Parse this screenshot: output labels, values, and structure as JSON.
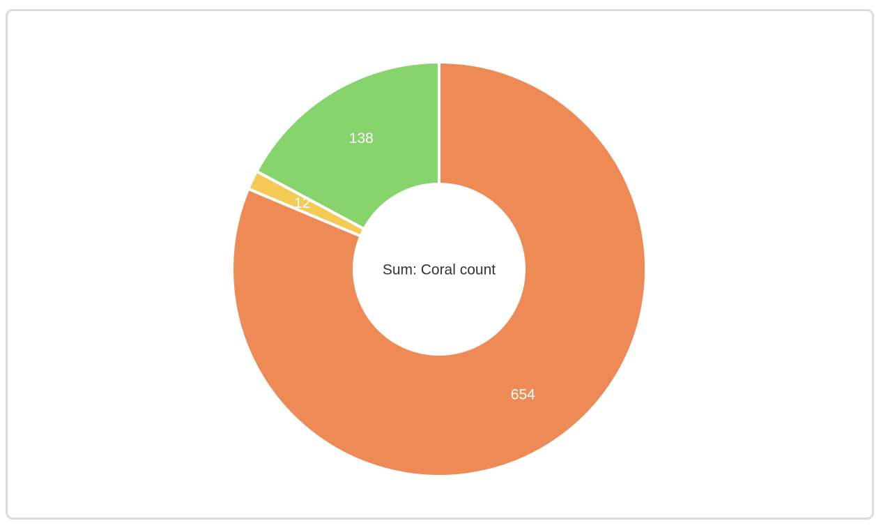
{
  "chart_data": {
    "type": "donut",
    "center_label": "Sum: Coral count",
    "values": [
      654,
      12,
      138
    ],
    "colors": [
      "#ee8a55",
      "#f5c956",
      "#88d46c"
    ]
  }
}
